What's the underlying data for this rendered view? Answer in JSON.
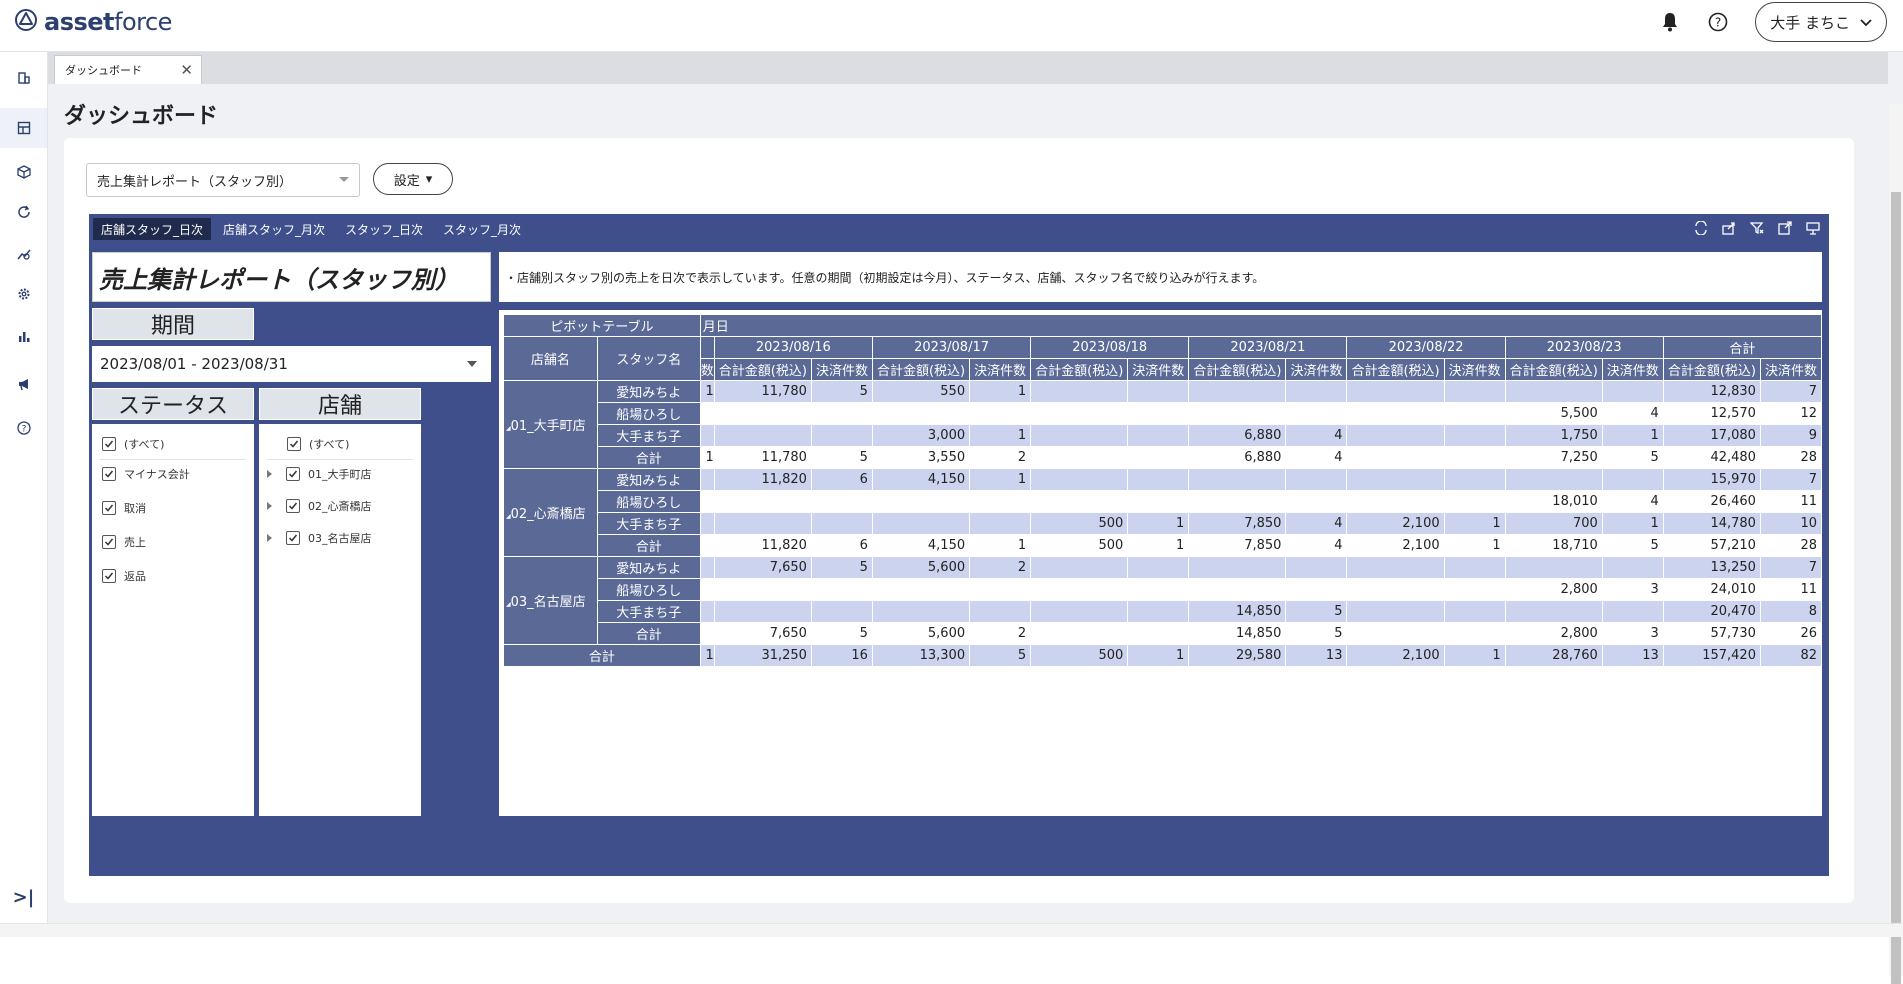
{
  "app": {
    "logo_text_bold": "asset",
    "logo_text_light": "force",
    "user_name": "大手 まちこ"
  },
  "tabs": [
    {
      "label": "ダッシュボード"
    }
  ],
  "page": {
    "title": "ダッシュボード",
    "report_select": "売上集計レポート（スタッフ別）",
    "settings_label": "設定"
  },
  "dashboard": {
    "tabs": [
      "店舗スタッフ_日次",
      "店舗スタッフ_月次",
      "スタッフ_日次",
      "スタッフ_月次"
    ],
    "report_title": "売上集計レポート（スタッフ別）",
    "description": "・店舗別スタッフ別の売上を日次で表示しています。任意の期間（初期設定は今月）、ステータス、店舗、スタッフ名で絞り込みが行えます。",
    "period_label": "期間",
    "period_value": "2023/08/01 - 2023/08/31",
    "status_label": "ステータス",
    "store_label": "店舗",
    "status_items": [
      "(すべて)",
      "マイナス会計",
      "取消",
      "売上",
      "返品"
    ],
    "store_items": [
      "(すべて)",
      "01_大手町店",
      "02_心斎橋店",
      "03_名古屋店"
    ]
  },
  "pivot": {
    "title": "ピボットテーブル",
    "date_header": "月日",
    "store_col": "店舗名",
    "staff_col": "スタッフ名",
    "dates": [
      "2023/08/16",
      "2023/08/17",
      "2023/08/18",
      "2023/08/21",
      "2023/08/22",
      "2023/08/23",
      "合計"
    ],
    "amount_label": "合計金額(税込)",
    "count_label": "決済件数",
    "cut_label": "数",
    "total_label": "合計",
    "groups": [
      {
        "store": "01_大手町店",
        "rows": [
          {
            "staff": "愛知みちよ",
            "cut": "1",
            "vals": [
              "11,780",
              "5",
              "550",
              "1",
              "",
              "",
              "",
              "",
              "",
              "",
              "",
              "",
              "12,830",
              "7"
            ]
          },
          {
            "staff": "船場ひろし",
            "cut": "",
            "vals": [
              "",
              "",
              "",
              "",
              "",
              "",
              "",
              "",
              "",
              "",
              "5,500",
              "4",
              "12,570",
              "12"
            ]
          },
          {
            "staff": "大手まち子",
            "cut": "",
            "vals": [
              "",
              "",
              "3,000",
              "1",
              "",
              "",
              "6,880",
              "4",
              "",
              "",
              "1,750",
              "1",
              "17,080",
              "9"
            ]
          },
          {
            "staff": "合計",
            "cut": "1",
            "vals": [
              "11,780",
              "5",
              "3,550",
              "2",
              "",
              "",
              "6,880",
              "4",
              "",
              "",
              "7,250",
              "5",
              "42,480",
              "28"
            ]
          }
        ]
      },
      {
        "store": "02_心斎橋店",
        "rows": [
          {
            "staff": "愛知みちよ",
            "cut": "",
            "vals": [
              "11,820",
              "6",
              "4,150",
              "1",
              "",
              "",
              "",
              "",
              "",
              "",
              "",
              "",
              "15,970",
              "7"
            ]
          },
          {
            "staff": "船場ひろし",
            "cut": "",
            "vals": [
              "",
              "",
              "",
              "",
              "",
              "",
              "",
              "",
              "",
              "",
              "18,010",
              "4",
              "26,460",
              "11"
            ]
          },
          {
            "staff": "大手まち子",
            "cut": "",
            "vals": [
              "",
              "",
              "",
              "",
              "500",
              "1",
              "7,850",
              "4",
              "2,100",
              "1",
              "700",
              "1",
              "14,780",
              "10"
            ]
          },
          {
            "staff": "合計",
            "cut": "",
            "vals": [
              "11,820",
              "6",
              "4,150",
              "1",
              "500",
              "1",
              "7,850",
              "4",
              "2,100",
              "1",
              "18,710",
              "5",
              "57,210",
              "28"
            ]
          }
        ]
      },
      {
        "store": "03_名古屋店",
        "rows": [
          {
            "staff": "愛知みちよ",
            "cut": "",
            "vals": [
              "7,650",
              "5",
              "5,600",
              "2",
              "",
              "",
              "",
              "",
              "",
              "",
              "",
              "",
              "13,250",
              "7"
            ]
          },
          {
            "staff": "船場ひろし",
            "cut": "",
            "vals": [
              "",
              "",
              "",
              "",
              "",
              "",
              "",
              "",
              "",
              "",
              "2,800",
              "3",
              "24,010",
              "11"
            ]
          },
          {
            "staff": "大手まち子",
            "cut": "",
            "vals": [
              "",
              "",
              "",
              "",
              "",
              "",
              "14,850",
              "5",
              "",
              "",
              "",
              "",
              "20,470",
              "8"
            ]
          },
          {
            "staff": "合計",
            "cut": "",
            "vals": [
              "7,650",
              "5",
              "5,600",
              "2",
              "",
              "",
              "14,850",
              "5",
              "",
              "",
              "2,800",
              "3",
              "57,730",
              "26"
            ]
          }
        ]
      }
    ],
    "grand_total": {
      "label": "合計",
      "cut": "1",
      "vals": [
        "31,250",
        "16",
        "13,300",
        "5",
        "500",
        "1",
        "29,580",
        "13",
        "2,100",
        "1",
        "28,760",
        "13",
        "157,420",
        "82"
      ]
    }
  },
  "colors": {
    "brand": "#2c3f6e",
    "dashboard_bg": "#3e4f8c",
    "header_bg": "#5a6996",
    "band": "#cbd3ee"
  }
}
